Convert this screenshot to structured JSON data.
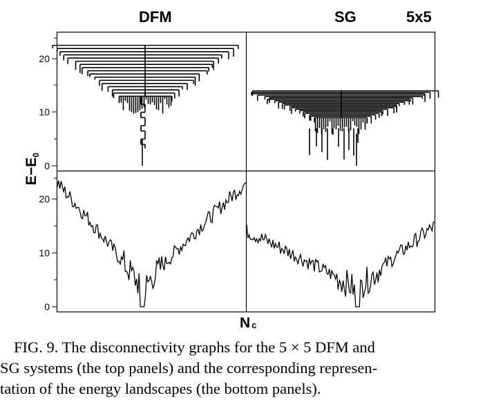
{
  "figure": {
    "headers": {
      "left": "DFM",
      "right": "SG",
      "size": "5x5"
    },
    "y_axis_label": "E−E",
    "y_axis_subscript": "0",
    "x_axis_label": "N",
    "x_axis_subscript": "c",
    "caption_lines": [
      "FIG. 9.  The disconnectivity graphs for the 5 × 5 DFM and",
      "SG systems (the top panels) and the corresponding represen-",
      "tation of the energy landscapes (the bottom panels)."
    ]
  },
  "chart_data": [
    {
      "type": "line",
      "title": "DFM disconnectivity graph",
      "panel": "top-left",
      "ylabel": "E−E0",
      "ylim": [
        -1,
        25
      ],
      "yticks": [
        0,
        10,
        20
      ],
      "global_minimum": 0,
      "top_branch_energy": 22.5,
      "lowest_major_branch_energy": 13
    },
    {
      "type": "line",
      "title": "SG disconnectivity graph",
      "panel": "top-right",
      "ylim": [
        -1,
        25
      ],
      "global_minimum": 0,
      "top_branch_energy": 14,
      "lowest_major_branch_energy": 9
    },
    {
      "type": "line",
      "title": "DFM energy landscape",
      "panel": "bottom-left",
      "xlabel": "Nc",
      "ylabel": "E−E0",
      "ylim": [
        -1,
        25
      ],
      "yticks": [
        0,
        10,
        20
      ],
      "left_end_energy": 23,
      "right_end_energy": 23,
      "minimum_energy": 0,
      "minimum_position_fraction": 0.45
    },
    {
      "type": "line",
      "title": "SG energy landscape",
      "panel": "bottom-right",
      "xlabel": "Nc",
      "ylim": [
        -1,
        25
      ],
      "left_end_energy": 14,
      "right_end_energy": 15,
      "minimum_energy": 0,
      "minimum_position_fraction": 0.59
    }
  ]
}
